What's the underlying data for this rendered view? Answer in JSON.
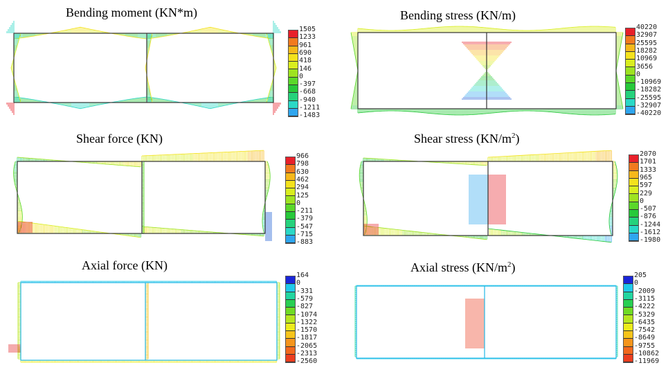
{
  "panels": [
    {
      "id": "bm",
      "title_main": "Bending moment (KN*m)",
      "title_sup": "",
      "title_tail": "",
      "legend": [
        "1505",
        "1233",
        "961",
        "690",
        "418",
        "146",
        "0",
        "-397",
        "-668",
        "-940",
        "-1211",
        "-1483"
      ],
      "scheme": "warm_top"
    },
    {
      "id": "bs",
      "title_main": "Bending stress (KN/m)",
      "title_sup": "",
      "title_tail": "",
      "legend": [
        "40220",
        "32907",
        "25595",
        "18282",
        "10969",
        "3656",
        "0",
        "-10969",
        "-18282",
        "-25595",
        "-32907",
        "-40220"
      ],
      "scheme": "warm_top"
    },
    {
      "id": "sf",
      "title_main": "Shear force (KN)",
      "title_sup": "",
      "title_tail": "",
      "legend": [
        "966",
        "798",
        "630",
        "462",
        "294",
        "125",
        "0",
        "-211",
        "-379",
        "-547",
        "-715",
        "-883"
      ],
      "scheme": "warm_top"
    },
    {
      "id": "ss",
      "title_main": "Shear stress (KN/m",
      "title_sup": "2",
      "title_tail": ")",
      "legend": [
        "2070",
        "1701",
        "1333",
        "965",
        "597",
        "229",
        "0",
        "-507",
        "-876",
        "-1244",
        "-1612",
        "-1980"
      ],
      "scheme": "warm_top"
    },
    {
      "id": "af",
      "title_main": "Axial force (KN)",
      "title_sup": "",
      "title_tail": "",
      "legend": [
        "164",
        "0",
        "-331",
        "-579",
        "-827",
        "-1074",
        "-1322",
        "-1570",
        "-1817",
        "-2065",
        "-2313",
        "-2560"
      ],
      "scheme": "cool_top"
    },
    {
      "id": "as",
      "title_main": "Axial stress (KN/m",
      "title_sup": "2",
      "title_tail": ")",
      "legend": [
        "205",
        "0",
        "-2009",
        "-3115",
        "-4222",
        "-5329",
        "-6435",
        "-7542",
        "-8649",
        "-9755",
        "-10862",
        "-11969"
      ],
      "scheme": "cool_top"
    }
  ],
  "colors": {
    "warm_top": [
      "#e8202a",
      "#f27a1e",
      "#f6b81a",
      "#f4e21c",
      "#d9ee1f",
      "#9ee321",
      "#5bd82a",
      "#27c93a",
      "#25d27c",
      "#2ad8c6",
      "#2fa6ef",
      "#1f5fd6"
    ],
    "cool_top": [
      "#1a26d8",
      "#1fc9ea",
      "#22d6a0",
      "#28cf52",
      "#6fdb24",
      "#b6e61f",
      "#ecec1c",
      "#f6c41b",
      "#f5951c",
      "#f2681d",
      "#ec3e1f",
      "#e31f22"
    ],
    "frame": "#333333"
  }
}
